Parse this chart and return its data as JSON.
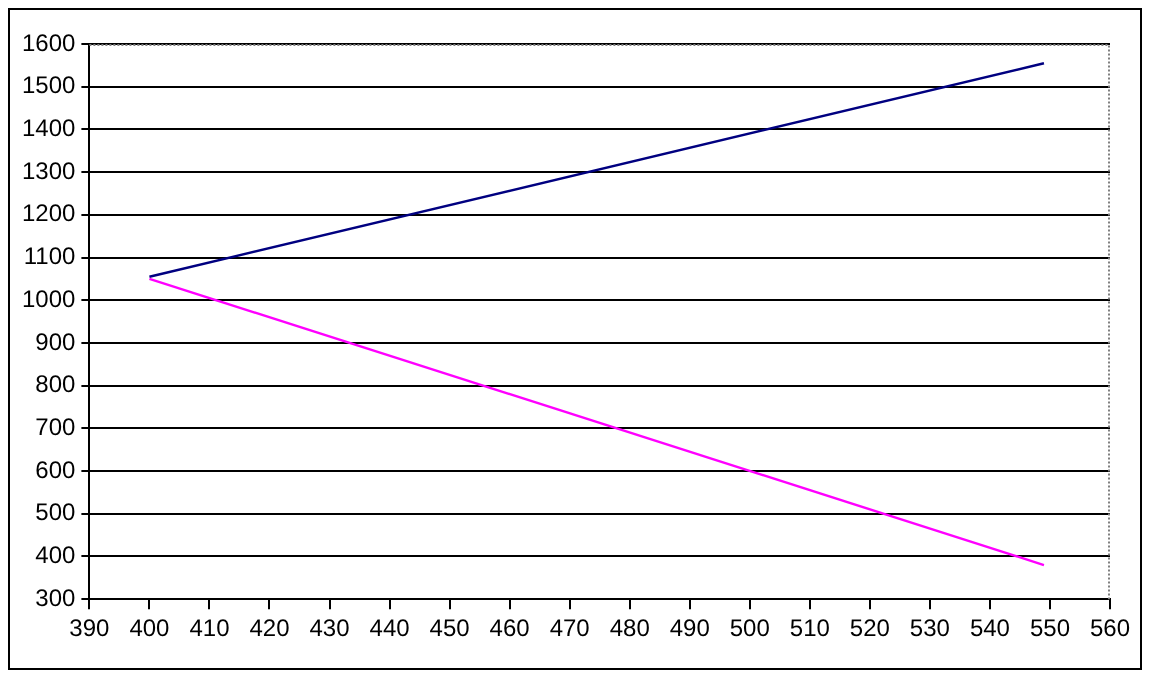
{
  "chart_data": {
    "type": "line",
    "grid": "y",
    "legend": false,
    "marker": "none",
    "line_style": "solid",
    "xlim": [
      390,
      560
    ],
    "xticks": [
      390,
      400,
      410,
      420,
      430,
      440,
      450,
      460,
      470,
      480,
      490,
      500,
      510,
      520,
      530,
      540,
      550,
      560
    ],
    "ylim": [
      300,
      1600
    ],
    "yticks": [
      300,
      400,
      500,
      600,
      700,
      800,
      900,
      1000,
      1100,
      1200,
      1300,
      1400,
      1500,
      1600
    ],
    "x": [
      400,
      549
    ],
    "series": [
      {
        "color": "#000080",
        "values": [
          1055,
          1555
        ]
      },
      {
        "color": "#ff00ff",
        "values": [
          1050,
          380
        ]
      }
    ]
  }
}
